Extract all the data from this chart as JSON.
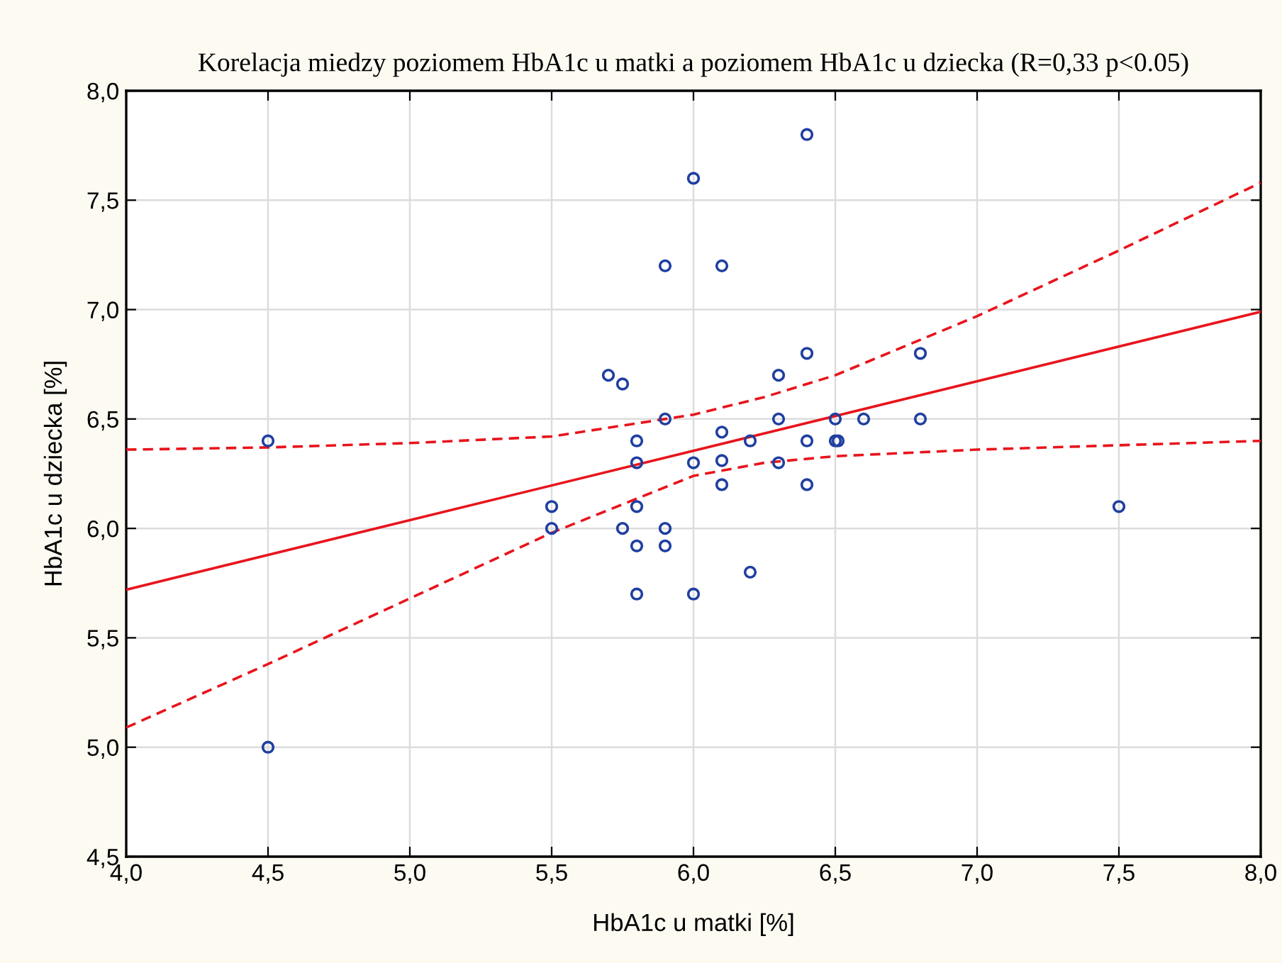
{
  "chart_data": {
    "type": "scatter",
    "title": "Korelacja miedzy poziomem HbA1c u matki a poziomem HbA1c u dziecka (R=0,33 p<0.05)",
    "xlabel": "HbA1c u matki [%]",
    "ylabel": "HbA1c u dziecka [%]",
    "xlim": [
      4.0,
      8.0
    ],
    "ylim": [
      4.5,
      8.0
    ],
    "xticks": [
      {
        "value": 4.0,
        "label": "4,0"
      },
      {
        "value": 4.5,
        "label": "4,5"
      },
      {
        "value": 5.0,
        "label": "5,0"
      },
      {
        "value": 5.5,
        "label": "5,5"
      },
      {
        "value": 6.0,
        "label": "6,0"
      },
      {
        "value": 6.5,
        "label": "6,5"
      },
      {
        "value": 7.0,
        "label": "7,0"
      },
      {
        "value": 7.5,
        "label": "7,5"
      },
      {
        "value": 8.0,
        "label": "8,0"
      }
    ],
    "yticks": [
      {
        "value": 4.5,
        "label": "4,5"
      },
      {
        "value": 5.0,
        "label": "5,0"
      },
      {
        "value": 5.5,
        "label": "5,5"
      },
      {
        "value": 6.0,
        "label": "6,0"
      },
      {
        "value": 6.5,
        "label": "6,5"
      },
      {
        "value": 7.0,
        "label": "7,0"
      },
      {
        "value": 7.5,
        "label": "7,5"
      },
      {
        "value": 8.0,
        "label": "8,0"
      }
    ],
    "grid": true,
    "legend": false,
    "series": [
      {
        "color": "#1f3fa0",
        "marker": "circle",
        "x": [
          4.5,
          4.5,
          5.5,
          5.5,
          5.7,
          5.75,
          5.75,
          5.8,
          5.8,
          5.8,
          5.8,
          5.8,
          5.9,
          5.9,
          5.9,
          5.9,
          6.0,
          6.0,
          6.0,
          6.1,
          6.1,
          6.1,
          6.1,
          6.2,
          6.2,
          6.3,
          6.3,
          6.3,
          6.4,
          6.4,
          6.4,
          6.4,
          6.5,
          6.5,
          6.51,
          6.6,
          6.8,
          6.8,
          7.5
        ],
        "values": [
          6.4,
          5.0,
          6.1,
          6.0,
          6.7,
          6.66,
          6.0,
          6.4,
          6.3,
          6.1,
          5.92,
          5.7,
          7.2,
          6.5,
          6.0,
          5.92,
          7.6,
          6.3,
          5.7,
          7.2,
          6.44,
          6.31,
          6.2,
          6.4,
          5.8,
          6.7,
          6.5,
          6.3,
          7.8,
          6.8,
          6.4,
          6.2,
          6.5,
          6.4,
          6.4,
          6.5,
          6.8,
          6.5,
          6.1
        ]
      },
      {
        "type": "line",
        "color": "#e8141c",
        "line_style": "solid",
        "marker": "none",
        "x": [
          4.0,
          8.0
        ],
        "values": [
          5.72,
          6.99
        ]
      },
      {
        "type": "line",
        "color": "#e8141c",
        "line_style": "dashed",
        "marker": "none",
        "x": [
          4.0,
          4.5,
          5.0,
          5.5,
          6.0,
          6.25,
          6.5,
          7.0,
          7.5,
          8.0
        ],
        "values": [
          6.36,
          6.37,
          6.39,
          6.42,
          6.52,
          6.6,
          6.7,
          6.97,
          7.27,
          7.58
        ]
      },
      {
        "type": "line",
        "color": "#e8141c",
        "line_style": "dashed",
        "marker": "none",
        "x": [
          4.0,
          4.5,
          5.0,
          5.5,
          6.0,
          6.25,
          6.5,
          7.0,
          7.5,
          8.0
        ],
        "values": [
          5.09,
          5.38,
          5.68,
          5.98,
          6.24,
          6.3,
          6.33,
          6.36,
          6.38,
          6.4
        ]
      }
    ]
  }
}
